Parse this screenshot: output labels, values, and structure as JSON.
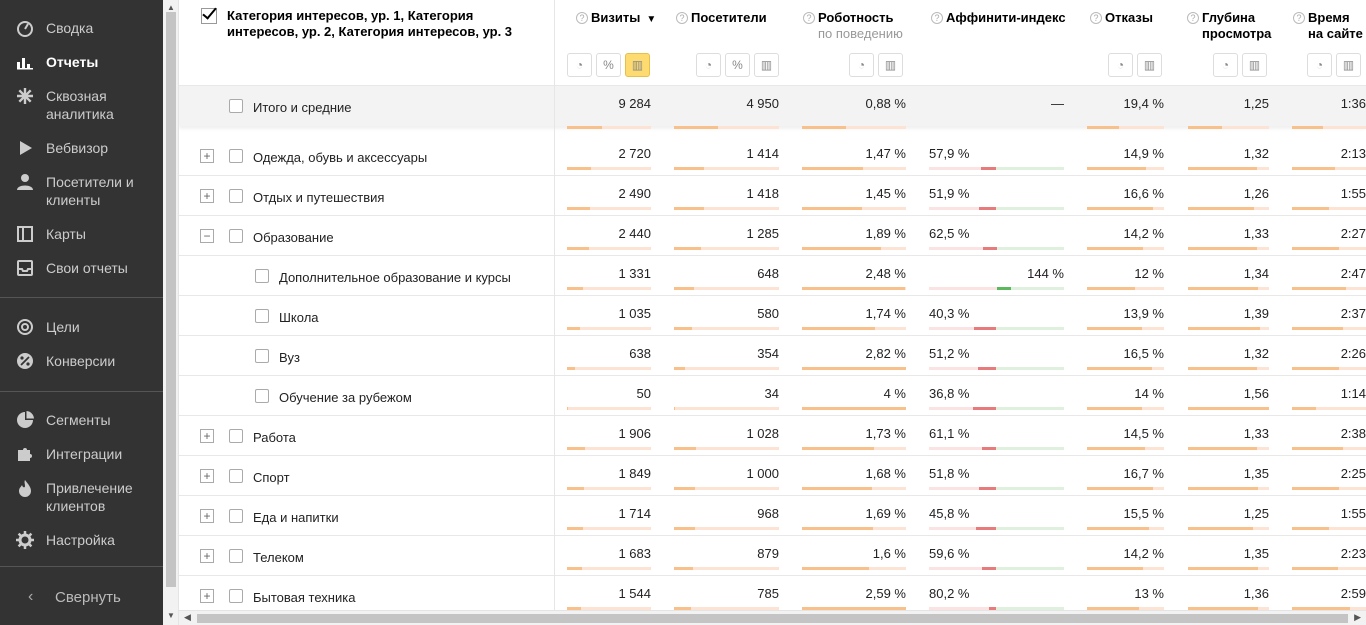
{
  "sidebar": {
    "items": [
      {
        "label": "Сводка",
        "icon": "gauge-icon",
        "active": false
      },
      {
        "label": "Отчеты",
        "icon": "bar-chart-icon",
        "active": true
      },
      {
        "label": "Сквозная аналитика",
        "icon": "snowflake-icon",
        "active": false
      },
      {
        "label": "Вебвизор",
        "icon": "play-icon",
        "active": false
      },
      {
        "label": "Посетители и клиенты",
        "icon": "person-icon",
        "active": false
      },
      {
        "label": "Карты",
        "icon": "map-icon",
        "active": false
      },
      {
        "label": "Свои отчеты",
        "icon": "inbox-icon",
        "active": false
      },
      {
        "label": "Цели",
        "icon": "target-icon",
        "active": false
      },
      {
        "label": "Конверсии",
        "icon": "percent-icon",
        "active": false
      },
      {
        "label": "Сегменты",
        "icon": "pie-icon",
        "active": false
      },
      {
        "label": "Интеграции",
        "icon": "puzzle-icon",
        "active": false
      },
      {
        "label": "Привлечение клиентов",
        "icon": "flame-icon",
        "active": false
      },
      {
        "label": "Настройка",
        "icon": "gear-icon",
        "active": false
      }
    ],
    "collapse_label": "Свернуть"
  },
  "table": {
    "dimension_header": "Категория интересов, ур. 1, Категория интересов, ур. 2, Категория интересов, ур. 3",
    "columns": [
      {
        "title": "Визиты",
        "sub": "",
        "sorted": true
      },
      {
        "title": "Посетители",
        "sub": "",
        "sorted": false
      },
      {
        "title": "Роботность",
        "sub": "по поведению",
        "sorted": false
      },
      {
        "title": "Аффинити-индекс",
        "sub": "",
        "sorted": false
      },
      {
        "title": "Отказы",
        "sub": "",
        "sorted": false
      },
      {
        "title": "Глубина",
        "sub": "просмотра",
        "sorted": false
      },
      {
        "title": "Время",
        "sub": "на сайте",
        "sorted": false
      }
    ],
    "total": {
      "name": "Итого и средние",
      "visits": "9 284",
      "visitors": "4 950",
      "robots": "0,88 %",
      "affinity": "—",
      "bounce": "19,4 %",
      "depth": "1,25",
      "time": "1:36"
    },
    "rows": [
      {
        "name": "Одежда, обувь и аксессуары",
        "level": 1,
        "expander": "+",
        "visits": "2 720",
        "visitors": "1 414",
        "robots": "1,47 %",
        "affinity": "57,9 %",
        "bounce": "14,9 %",
        "depth": "1,32",
        "time": "2:13",
        "v_frac": 0.29,
        "vis_frac": 0.29,
        "r_frac": 0.59,
        "aff_val": 57.9,
        "b_frac": 0.77,
        "d_frac": 0.85,
        "t_frac": 0.58
      },
      {
        "name": "Отдых и путешествия",
        "level": 1,
        "expander": "+",
        "visits": "2 490",
        "visitors": "1 418",
        "robots": "1,45 %",
        "affinity": "51,9 %",
        "bounce": "16,6 %",
        "depth": "1,26",
        "time": "1:55",
        "v_frac": 0.27,
        "vis_frac": 0.29,
        "r_frac": 0.58,
        "aff_val": 51.9,
        "b_frac": 0.86,
        "d_frac": 0.81,
        "t_frac": 0.5
      },
      {
        "name": "Образование",
        "level": 1,
        "expander": "−",
        "visits": "2 440",
        "visitors": "1 285",
        "robots": "1,89 %",
        "affinity": "62,5 %",
        "bounce": "14,2 %",
        "depth": "1,33",
        "time": "2:27",
        "v_frac": 0.26,
        "vis_frac": 0.26,
        "r_frac": 0.76,
        "aff_val": 62.5,
        "b_frac": 0.73,
        "d_frac": 0.85,
        "t_frac": 0.64
      },
      {
        "name": "Дополнительное образование и курсы",
        "level": 2,
        "expander": "",
        "visits": "1 331",
        "visitors": "648",
        "robots": "2,48 %",
        "affinity": "144 %",
        "bounce": "12 %",
        "depth": "1,34",
        "time": "2:47",
        "v_frac": 0.19,
        "vis_frac": 0.19,
        "r_frac": 0.99,
        "aff_val": 144,
        "b_frac": 0.62,
        "d_frac": 0.86,
        "t_frac": 0.73
      },
      {
        "name": "Школа",
        "level": 2,
        "expander": "",
        "visits": "1 035",
        "visitors": "580",
        "robots": "1,74 %",
        "affinity": "40,3 %",
        "bounce": "13,9 %",
        "depth": "1,39",
        "time": "2:37",
        "v_frac": 0.15,
        "vis_frac": 0.17,
        "r_frac": 0.7,
        "aff_val": 40.3,
        "b_frac": 0.72,
        "d_frac": 0.89,
        "t_frac": 0.69
      },
      {
        "name": "Вуз",
        "level": 2,
        "expander": "",
        "visits": "638",
        "visitors": "354",
        "robots": "2,82 %",
        "affinity": "51,2 %",
        "bounce": "16,5 %",
        "depth": "1,32",
        "time": "2:26",
        "v_frac": 0.09,
        "vis_frac": 0.1,
        "r_frac": 1.0,
        "aff_val": 51.2,
        "b_frac": 0.85,
        "d_frac": 0.85,
        "t_frac": 0.64
      },
      {
        "name": "Обучение за рубежом",
        "level": 2,
        "expander": "",
        "visits": "50",
        "visitors": "34",
        "robots": "4 %",
        "affinity": "36,8 %",
        "bounce": "14 %",
        "depth": "1,56",
        "time": "1:14",
        "v_frac": 0.01,
        "vis_frac": 0.01,
        "r_frac": 1.0,
        "aff_val": 36.8,
        "b_frac": 0.72,
        "d_frac": 1.0,
        "t_frac": 0.33
      },
      {
        "name": "Работа",
        "level": 1,
        "expander": "+",
        "visits": "1 906",
        "visitors": "1 028",
        "robots": "1,73 %",
        "affinity": "61,1 %",
        "bounce": "14,5 %",
        "depth": "1,33",
        "time": "2:38",
        "v_frac": 0.21,
        "vis_frac": 0.21,
        "r_frac": 0.69,
        "aff_val": 61.1,
        "b_frac": 0.75,
        "d_frac": 0.85,
        "t_frac": 0.69
      },
      {
        "name": "Спорт",
        "level": 1,
        "expander": "+",
        "visits": "1 849",
        "visitors": "1 000",
        "robots": "1,68 %",
        "affinity": "51,8 %",
        "bounce": "16,7 %",
        "depth": "1,35",
        "time": "2:25",
        "v_frac": 0.2,
        "vis_frac": 0.2,
        "r_frac": 0.67,
        "aff_val": 51.8,
        "b_frac": 0.86,
        "d_frac": 0.87,
        "t_frac": 0.63
      },
      {
        "name": "Еда и напитки",
        "level": 1,
        "expander": "+",
        "visits": "1 714",
        "visitors": "968",
        "robots": "1,69 %",
        "affinity": "45,8 %",
        "bounce": "15,5 %",
        "depth": "1,25",
        "time": "1:55",
        "v_frac": 0.19,
        "vis_frac": 0.2,
        "r_frac": 0.68,
        "aff_val": 45.8,
        "b_frac": 0.8,
        "d_frac": 0.8,
        "t_frac": 0.5
      },
      {
        "name": "Телеком",
        "level": 1,
        "expander": "+",
        "visits": "1 683",
        "visitors": "879",
        "robots": "1,6 %",
        "affinity": "59,6 %",
        "bounce": "14,2 %",
        "depth": "1,35",
        "time": "2:23",
        "v_frac": 0.18,
        "vis_frac": 0.18,
        "r_frac": 0.64,
        "aff_val": 59.6,
        "b_frac": 0.73,
        "d_frac": 0.87,
        "t_frac": 0.62
      },
      {
        "name": "Бытовая техника",
        "level": 1,
        "expander": "+",
        "visits": "1 544",
        "visitors": "785",
        "robots": "2,59 %",
        "affinity": "80,2 %",
        "bounce": "13 %",
        "depth": "1,36",
        "time": "2:59",
        "v_frac": 0.17,
        "vis_frac": 0.16,
        "r_frac": 1.0,
        "aff_val": 80.2,
        "b_frac": 0.67,
        "d_frac": 0.87,
        "t_frac": 0.78
      }
    ]
  }
}
